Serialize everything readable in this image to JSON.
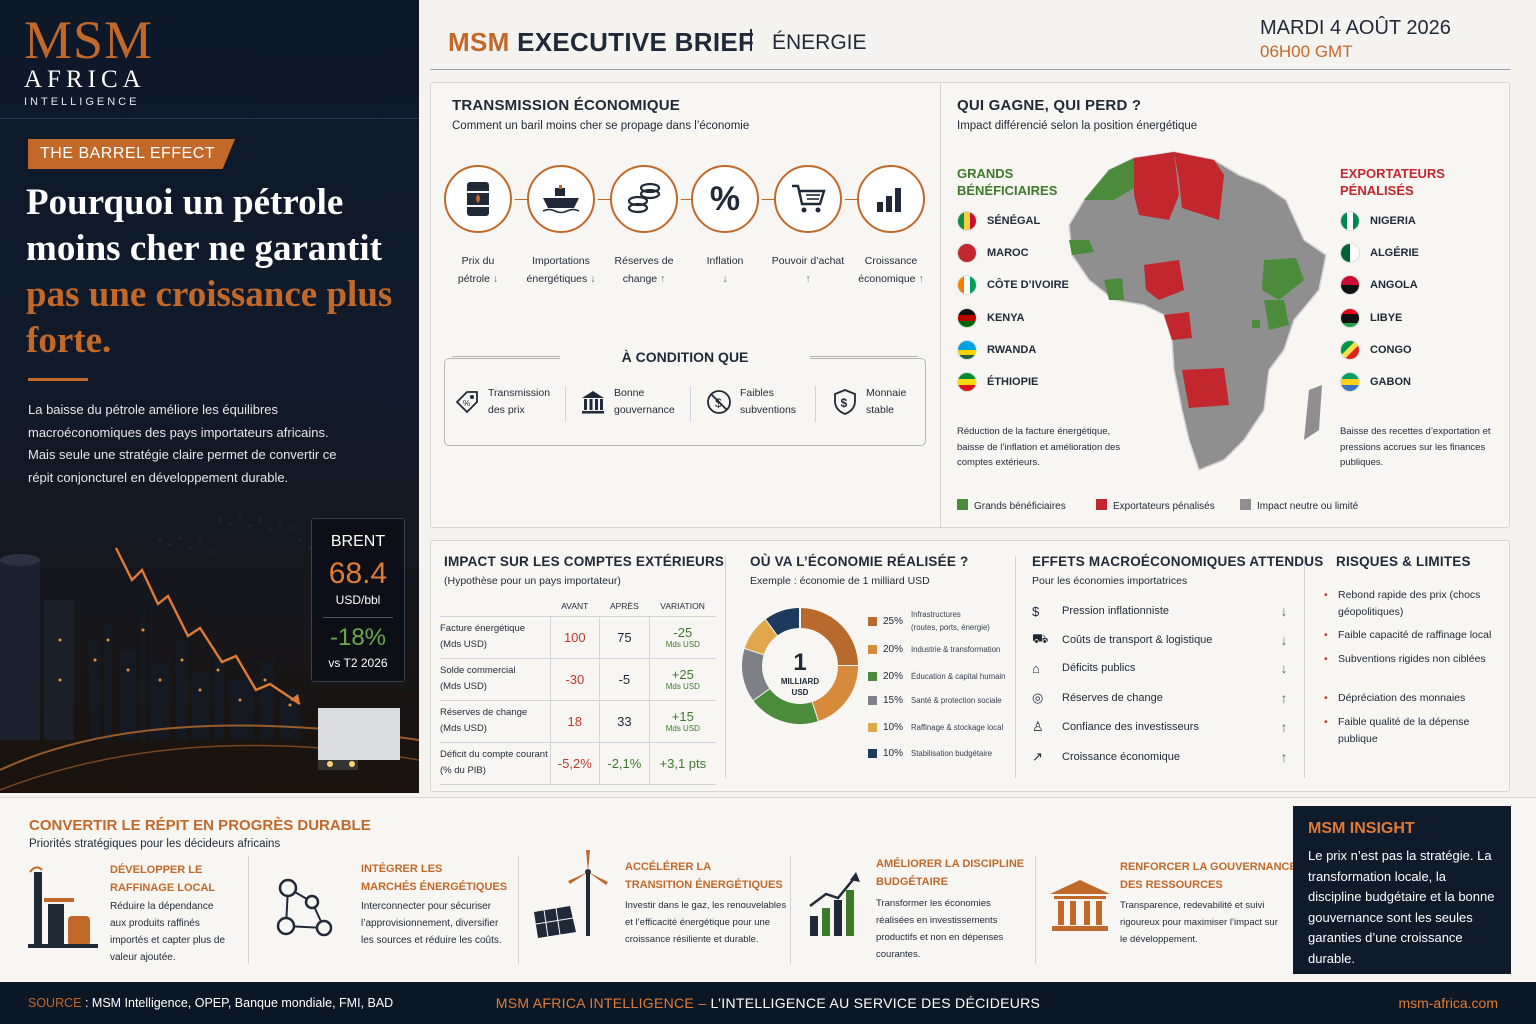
{
  "brand": {
    "logo_main": "MSM",
    "logo_africa": "AFRICA",
    "logo_intel": "INTELLIGENCE"
  },
  "header": {
    "title_brand": "MSM",
    "title_rest": "EXECUTIVE BRIEF",
    "section": "ÉNERGIE",
    "date": "MARDI 4 AOÛT 2026",
    "time": "06H00 GMT"
  },
  "left": {
    "tag": "THE BARREL EFFECT",
    "headline_white": "Pourquoi un pétrole moins cher ne garantit",
    "headline_orange": "pas une croissance plus forte.",
    "lead": "La baisse du pétrole améliore les équilibres macroéconomiques des pays importateurs africains. Mais seule une stratégie claire permet de convertir ce répit conjoncturel en développement durable.",
    "brent": {
      "label": "BRENT",
      "value": "68.4",
      "unit": "USD/bbl",
      "change": "-18%",
      "period": "vs T2 2026"
    }
  },
  "transmission": {
    "title": "TRANSMISSION ÉCONOMIQUE",
    "subtitle": "Comment un baril moins cher se propage dans l’économie",
    "steps": [
      {
        "l1": "Prix du",
        "l2": "pétrole",
        "dir": "↓",
        "icon": "oil-barrel-icon"
      },
      {
        "l1": "Importations",
        "l2": "énergétiques",
        "dir": "↓",
        "icon": "tanker-ship-icon"
      },
      {
        "l1": "Réserves de",
        "l2": "change",
        "dir": "↑",
        "icon": "coin-stack-icon"
      },
      {
        "l1": "Inflation",
        "l2": "",
        "dir": "↓",
        "icon": "percent-icon"
      },
      {
        "l1": "Pouvoir d’achat",
        "l2": "",
        "dir": "↑",
        "icon": "shopping-cart-icon"
      },
      {
        "l1": "Croissance",
        "l2": "économique",
        "dir": "↑",
        "icon": "bar-chart-icon"
      }
    ],
    "condition_title": "À CONDITION QUE",
    "conditions": [
      {
        "l1": "Transmission",
        "l2": "des prix",
        "icon": "price-tag-icon"
      },
      {
        "l1": "Bonne",
        "l2": "gouvernance",
        "icon": "institution-icon"
      },
      {
        "l1": "Faibles",
        "l2": "subventions",
        "icon": "no-subsidy-icon"
      },
      {
        "l1": "Monnaie",
        "l2": "stable",
        "icon": "shield-dollar-icon"
      }
    ]
  },
  "winners": {
    "title": "QUI GAGNE, QUI PERD ?",
    "subtitle": "Impact différencié selon la position énergétique",
    "left_title_1": "GRANDS",
    "left_title_2": "BÉNÉFICIAIRES",
    "right_title_1": "EXPORTATEURS",
    "right_title_2": "PÉNALISÉS",
    "beneficiaries": [
      "SÉNÉGAL",
      "MAROC",
      "CÔTE D’IVOIRE",
      "KENYA",
      "RWANDA",
      "ÉTHIOPIE"
    ],
    "exporters": [
      "NIGERIA",
      "ALGÉRIE",
      "ANGOLA",
      "LIBYE",
      "CONGO",
      "GABON"
    ],
    "left_note": "Réduction de la facture énergétique, baisse de l’inflation et amélioration des comptes extérieurs.",
    "right_note": "Baisse des recettes d’exportation et pressions accrues sur les finances publiques.",
    "legend": [
      "Grands bénéficiaires",
      "Exportateurs pénalisés",
      "Impact neutre ou limité"
    ],
    "colors": {
      "green": "#4c8b3b",
      "red": "#c1272d",
      "grey": "#8f8f8f"
    }
  },
  "impact": {
    "title": "IMPACT SUR LES COMPTES EXTÉRIEURS",
    "subtitle": "(Hypothèse pour un pays importateur)",
    "headers": [
      "AVANT",
      "APRÈS",
      "VARIATION"
    ],
    "rows": [
      {
        "l1": "Facture énergétique",
        "l2": "(Mds USD)",
        "before": "100",
        "after": "75",
        "var": "-25",
        "var_unit": "Mds USD"
      },
      {
        "l1": "Solde commercial",
        "l2": "(Mds USD)",
        "before": "-30",
        "after": "-5",
        "var": "+25",
        "var_unit": "Mds USD"
      },
      {
        "l1": "Réserves de change",
        "l2": "(Mds USD)",
        "before": "18",
        "after": "33",
        "var": "+15",
        "var_unit": "Mds USD"
      },
      {
        "l1": "Déficit du compte courant",
        "l2": "(% du PIB)",
        "before": "-5,2%",
        "after": "-2,1%",
        "var": "+3,1 pts",
        "var_unit": ""
      }
    ]
  },
  "chart_data": {
    "type": "pie",
    "title": "OÙ VA L’ÉCONOMIE RÉALISÉE ?",
    "subtitle": "Exemple : économie de 1 milliard USD",
    "center_value": "1",
    "center_label": "MILLIARD USD",
    "slices": [
      {
        "label": "Infrastructures",
        "sub": "(routes, ports, énergie)",
        "value": 25,
        "pct": "25%",
        "color": "#b86a2c"
      },
      {
        "label": "Industrie & transformation",
        "sub": "",
        "value": 20,
        "pct": "20%",
        "color": "#d88a3c"
      },
      {
        "label": "Éducation & capital humain",
        "sub": "",
        "value": 20,
        "pct": "20%",
        "color": "#4c8b3b"
      },
      {
        "label": "Santé & protection sociale",
        "sub": "",
        "value": 15,
        "pct": "15%",
        "color": "#7d8087"
      },
      {
        "label": "Raffinage & stockage local",
        "sub": "",
        "value": 10,
        "pct": "10%",
        "color": "#e0a84a"
      },
      {
        "label": "Stabilisation budgétaire",
        "sub": "",
        "value": 10,
        "pct": "10%",
        "color": "#1c3a5e"
      }
    ]
  },
  "effects": {
    "title": "EFFETS MACROÉCONOMIQUES ATTENDUS",
    "subtitle": "Pour les économies importatrices",
    "items": [
      {
        "label": "Pression inflationniste",
        "dir": "↓",
        "icon": "inflation-icon"
      },
      {
        "label": "Coûts de transport & logistique",
        "dir": "↓",
        "icon": "truck-icon"
      },
      {
        "label": "Déficits publics",
        "dir": "↓",
        "icon": "government-icon"
      },
      {
        "label": "Réserves de change",
        "dir": "↑",
        "icon": "coins-icon"
      },
      {
        "label": "Confiance des investisseurs",
        "dir": "↑",
        "icon": "investor-icon"
      },
      {
        "label": "Croissance économique",
        "dir": "↑",
        "icon": "growth-icon"
      }
    ]
  },
  "risks": {
    "title": "RISQUES & LIMITES",
    "items": [
      "Rebond rapide des prix (chocs géopolitiques)",
      "Faible capacité de raffinage local",
      "Subventions rigides non ciblées",
      "Dépréciation des monnaies",
      "Faible qualité de la dépense publique"
    ]
  },
  "strategy": {
    "title": "CONVERTIR LE RÉPIT EN PROGRÈS DURABLE",
    "subtitle": "Priorités stratégiques pour les décideurs africains",
    "items": [
      {
        "t1": "DÉVELOPPER LE",
        "t2": "RAFFINAGE LOCAL",
        "text": "Réduire la dépendance aux produits raffinés importés et capter plus de valeur ajoutée.",
        "icon": "refinery-icon"
      },
      {
        "t1": "INTÉGRER LES",
        "t2": "MARCHÉS ÉNERGÉTIQUES",
        "text": "Interconnecter pour sécuriser l’approvisionnement, diversifier les sources et réduire les coûts.",
        "icon": "network-icon"
      },
      {
        "t1": "ACCÉLÉRER LA",
        "t2": "TRANSITION ÉNERGÉTIQUES",
        "text": "Investir dans le gaz, les renouvelables et l’efficacité énergétique pour une croissance résiliente et durable.",
        "icon": "wind-solar-icon"
      },
      {
        "t1": "AMÉLIORER LA DISCIPLINE",
        "t2": "BUDGÉTAIRE",
        "text": "Transformer les économies réalisées en investissements productifs et non en dépenses courantes.",
        "icon": "growth-chart-icon"
      },
      {
        "t1": "RENFORCER LA GOUVERNANCE",
        "t2": "DES RESSOURCES",
        "text": "Transparence, redevabilité et suivi rigoureux pour maximiser l’impact sur le développement.",
        "icon": "courthouse-icon"
      }
    ]
  },
  "insight": {
    "title": "MSM INSIGHT",
    "body": "Le prix n’est pas la stratégie. La transformation locale, la discipline budgétaire et la bonne gouvernance sont les seules garanties d’une croissance durable."
  },
  "footer": {
    "source_label": "SOURCE",
    "source_text": " : MSM Intelligence, OPEP, Banque mondiale, FMI, BAD",
    "center_brand": "MSM AFRICA INTELLIGENCE –",
    "center_text": " L’INTELLIGENCE AU SERVICE DES DÉCIDEURS",
    "site": "msm-africa.com"
  }
}
